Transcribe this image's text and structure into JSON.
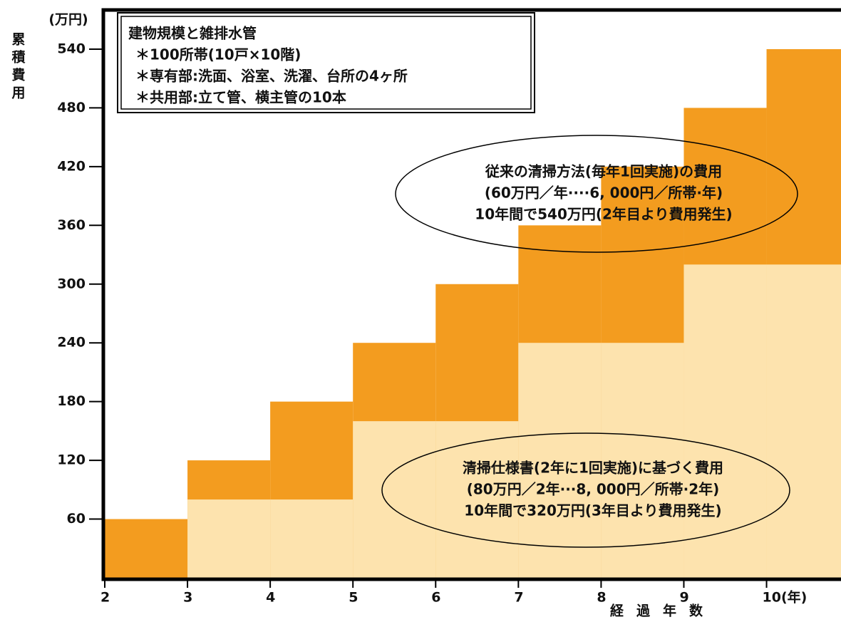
{
  "chart_data": {
    "type": "step",
    "y_unit": "(万円)",
    "y_label": "累積費用",
    "x_label": "経過年数",
    "x": [
      2,
      3,
      4,
      5,
      6,
      7,
      8,
      9,
      10
    ],
    "series": [
      {
        "color": "#f39c1f",
        "values": [
          60,
          120,
          180,
          240,
          300,
          360,
          420,
          480,
          540
        ]
      },
      {
        "color": "#fde3ae",
        "values": [
          null,
          80,
          80,
          160,
          160,
          240,
          240,
          320,
          320
        ]
      }
    ],
    "xlim": [
      2,
      10.9
    ],
    "xticks": [
      2,
      3,
      4,
      5,
      6,
      7,
      8,
      9,
      {
        "value": 10,
        "label": "10(年)"
      }
    ],
    "ylim": [
      0,
      580
    ],
    "yticks": [
      60,
      120,
      180,
      240,
      300,
      360,
      420,
      480,
      540
    ],
    "info_box": [
      "建物規模と雑排水管",
      "＊100所帯(10戸×10階)",
      "＊専有部:洗面、浴室、洗濯、台所の4ヶ所",
      "＊共用部:立て管、横主管の10本"
    ],
    "annotations": [
      [
        "従来の清掃方法(毎年1回実施)の費用",
        "(60万円／年····6, 000円／所帯·年)",
        "10年間で540万円(2年目より費用発生)"
      ],
      [
        "清掃仕様書(2年に1回実施)に基づく費用",
        "(80万円／2年···8, 000円／所帯·2年)",
        "10年間で320万円(3年目より費用発生)"
      ]
    ]
  }
}
